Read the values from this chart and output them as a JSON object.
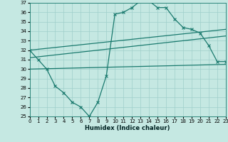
{
  "xlabel": "Humidex (Indice chaleur)",
  "bg_color": "#c5e8e2",
  "grid_color": "#9fcfca",
  "line_color": "#1a7a6e",
  "xlim": [
    0,
    23
  ],
  "ylim": [
    25,
    37
  ],
  "xticks": [
    0,
    1,
    2,
    3,
    4,
    5,
    6,
    7,
    8,
    9,
    10,
    11,
    12,
    13,
    14,
    15,
    16,
    17,
    18,
    19,
    20,
    21,
    22,
    23
  ],
  "yticks": [
    25,
    26,
    27,
    28,
    29,
    30,
    31,
    32,
    33,
    34,
    35,
    36,
    37
  ],
  "main_x": [
    0,
    1,
    2,
    3,
    4,
    5,
    6,
    7,
    8,
    9,
    10,
    11,
    12,
    13,
    14,
    15,
    16,
    17,
    18,
    19,
    20,
    21,
    22,
    23
  ],
  "main_y": [
    32.0,
    31.0,
    30.0,
    28.2,
    27.5,
    26.5,
    26.0,
    25.0,
    26.5,
    29.3,
    35.8,
    36.0,
    36.5,
    37.2,
    37.2,
    36.5,
    36.5,
    35.3,
    34.4,
    34.2,
    33.8,
    32.5,
    30.8,
    30.8
  ],
  "line1_x": [
    0,
    23
  ],
  "line1_y": [
    32.0,
    34.2
  ],
  "line2_x": [
    0,
    23
  ],
  "line2_y": [
    31.2,
    33.5
  ],
  "line3_x": [
    0,
    23
  ],
  "line3_y": [
    30.0,
    30.5
  ]
}
